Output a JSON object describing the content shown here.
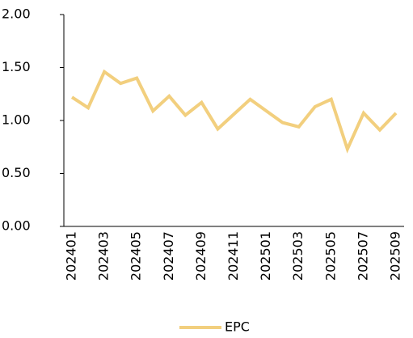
{
  "chart_data": {
    "type": "line",
    "categories": [
      "202401",
      null,
      "202403",
      null,
      "202405",
      null,
      "202407",
      null,
      "202409",
      null,
      "202411",
      null,
      "202501",
      null,
      "202503",
      null,
      "202505",
      null,
      "202507",
      null,
      "202509"
    ],
    "series": [
      {
        "name": "EPC",
        "color": "#f2cf7e",
        "values": [
          1.22,
          1.12,
          1.46,
          1.35,
          1.4,
          1.09,
          1.23,
          1.05,
          1.17,
          0.92,
          1.06,
          1.2,
          1.09,
          0.98,
          0.94,
          1.13,
          1.2,
          0.73,
          1.07,
          0.91,
          1.07
        ]
      }
    ],
    "ylim": [
      0,
      2
    ],
    "yticks": [
      {
        "value": 0,
        "label": "0.00"
      },
      {
        "value": 0.5,
        "label": "0.50"
      },
      {
        "value": 1,
        "label": "1.00"
      },
      {
        "value": 1.5,
        "label": "1.50"
      },
      {
        "value": 2,
        "label": "2.00"
      }
    ],
    "legend": "bottom"
  }
}
